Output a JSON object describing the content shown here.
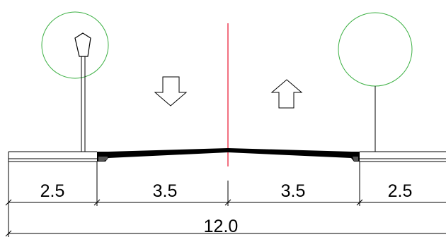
{
  "colors": {
    "line": "#000000",
    "tree": "#3cb043",
    "centerline": "#e8112d",
    "background": "#ffffff"
  },
  "icons": [
    "street-lamp-icon",
    "tree-icon",
    "down-arrow-icon",
    "up-arrow-icon"
  ],
  "dimensions": {
    "left_sidewalk": "2.5",
    "left_lane": "3.5",
    "right_lane": "3.5",
    "right_sidewalk": "2.5",
    "total": "12.0"
  }
}
